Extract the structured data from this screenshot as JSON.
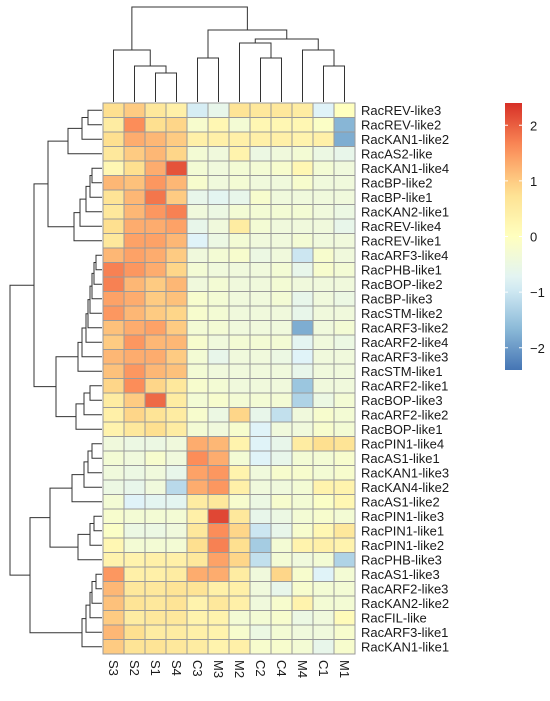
{
  "chart_data": {
    "type": "heatmap",
    "title": "",
    "columns": [
      "S3",
      "S2",
      "S1",
      "S4",
      "C3",
      "M3",
      "M2",
      "C2",
      "C4",
      "M4",
      "C1",
      "M1"
    ],
    "rows": [
      "RacREV-like3",
      "RacREV-like2",
      "RacKAN1-like2",
      "RacAS2-like",
      "RacKAN1-like4",
      "RacBP-like2",
      "RacBP-like1",
      "RacKAN2-like1",
      "RacREV-like4",
      "RacREV-like1",
      "RacARF3-like4",
      "RacPHB-like1",
      "RacBOP-like2",
      "RacBP-like3",
      "RacSTM-like2",
      "RacARF3-like2",
      "RacARF2-like4",
      "RacARF3-like3",
      "RacSTM-like1",
      "RacARF2-like1",
      "RacBOP-like3",
      "RacARF2-like2",
      "RacBOP-like1",
      "RacPIN1-like4",
      "RacAS1-like1",
      "RacKAN1-like3",
      "RacKAN4-like2",
      "RacAS1-like2",
      "RacPIN1-like3",
      "RacPIN1-like1",
      "RacPIN1-like2",
      "RacPHB-like3",
      "RacAS1-like3",
      "RacARF2-like3",
      "RacKAN2-like2",
      "RacFIL-like",
      "RacARF3-like1",
      "RacKAN1-like1"
    ],
    "values": [
      [
        0.8,
        1.0,
        0.6,
        0.4,
        -0.9,
        -0.6,
        0.7,
        0.6,
        0.6,
        0.5,
        -0.8,
        0.0
      ],
      [
        0.5,
        1.6,
        0.8,
        0.9,
        -0.2,
        0.2,
        -0.3,
        0.2,
        0.2,
        0.2,
        -0.1,
        -1.7
      ],
      [
        0.8,
        1.3,
        1.2,
        1.0,
        0.4,
        0.4,
        0.4,
        0.4,
        0.4,
        0.3,
        0.4,
        -1.8
      ],
      [
        0.6,
        1.0,
        1.2,
        0.9,
        -0.3,
        -0.4,
        0.3,
        -0.5,
        -0.4,
        -0.3,
        -0.5,
        -0.6
      ],
      [
        0.2,
        0.8,
        1.3,
        2.1,
        -0.3,
        -0.4,
        -0.3,
        -0.3,
        -0.2,
        0.2,
        -0.3,
        -0.4
      ],
      [
        1.2,
        1.1,
        1.5,
        1.2,
        -0.2,
        -0.4,
        -0.3,
        -0.4,
        -0.4,
        -0.2,
        -0.4,
        -0.4
      ],
      [
        0.7,
        1.2,
        1.8,
        1.0,
        -0.6,
        -0.7,
        -0.6,
        -0.2,
        -0.4,
        -0.4,
        -0.4,
        -0.4
      ],
      [
        0.6,
        1.2,
        1.5,
        1.7,
        -0.4,
        -0.5,
        -0.3,
        -0.3,
        -0.3,
        -0.3,
        -0.4,
        -0.5
      ],
      [
        0.8,
        1.3,
        1.3,
        1.4,
        -0.6,
        -0.4,
        0.5,
        -0.3,
        -0.4,
        -0.4,
        -0.4,
        -0.6
      ],
      [
        0.6,
        1.4,
        1.4,
        1.2,
        -0.8,
        -0.5,
        -0.3,
        -0.4,
        -0.4,
        -0.3,
        -0.4,
        -0.4
      ],
      [
        1.2,
        1.4,
        1.3,
        1.0,
        -0.4,
        -0.3,
        -0.2,
        -0.5,
        -0.4,
        -1.0,
        -0.2,
        -0.4
      ],
      [
        1.7,
        1.5,
        1.3,
        0.9,
        -0.3,
        -0.4,
        -0.4,
        -0.4,
        -0.3,
        -0.6,
        -0.2,
        -0.3
      ],
      [
        1.7,
        1.2,
        1.0,
        1.2,
        -0.4,
        -0.3,
        -0.4,
        -0.4,
        -0.3,
        -0.4,
        -0.4,
        -0.4
      ],
      [
        1.4,
        1.3,
        1.0,
        1.1,
        -0.2,
        -0.3,
        -0.4,
        -0.4,
        -0.3,
        -0.6,
        -0.4,
        -0.5
      ],
      [
        1.5,
        1.2,
        1.0,
        0.9,
        -0.2,
        -0.3,
        -0.4,
        -0.4,
        -0.4,
        -0.6,
        -0.4,
        -0.4
      ],
      [
        1.1,
        1.3,
        1.4,
        1.0,
        -0.3,
        -0.3,
        -0.4,
        -0.4,
        -0.4,
        -1.8,
        -0.4,
        -0.3
      ],
      [
        1.0,
        1.5,
        1.2,
        1.2,
        -0.2,
        -0.4,
        -0.3,
        -0.3,
        -0.3,
        -0.7,
        -0.4,
        -0.5
      ],
      [
        1.2,
        1.3,
        1.3,
        1.0,
        -0.3,
        -0.6,
        -0.4,
        -0.4,
        -0.5,
        -0.8,
        -0.4,
        -0.4
      ],
      [
        1.1,
        1.5,
        1.2,
        1.1,
        -0.3,
        -0.4,
        -0.4,
        -0.4,
        -0.4,
        -0.6,
        -0.4,
        -0.4
      ],
      [
        0.9,
        1.6,
        0.9,
        0.6,
        -0.2,
        -0.3,
        -0.4,
        -0.4,
        -0.4,
        -1.5,
        -0.4,
        -0.4
      ],
      [
        0.5,
        1.0,
        1.9,
        0.5,
        -0.3,
        -0.2,
        -0.3,
        -0.3,
        -0.3,
        -1.3,
        -0.5,
        -0.3
      ],
      [
        0.4,
        0.9,
        0.7,
        0.5,
        -0.2,
        -0.5,
        0.9,
        -0.6,
        -1.1,
        -0.4,
        -0.2,
        -0.3
      ],
      [
        0.3,
        0.6,
        0.8,
        0.5,
        -0.3,
        -0.4,
        -0.2,
        -0.8,
        -0.4,
        -0.4,
        -0.2,
        -0.3
      ],
      [
        -0.4,
        -0.5,
        -0.5,
        -0.4,
        1.3,
        1.2,
        0.3,
        -0.8,
        -0.6,
        0.5,
        0.8,
        0.7
      ],
      [
        -0.3,
        -0.4,
        -0.2,
        -0.4,
        1.6,
        1.3,
        -0.3,
        -0.8,
        -0.6,
        -0.3,
        -0.3,
        -0.2
      ],
      [
        -0.4,
        -0.5,
        -0.4,
        -0.6,
        1.4,
        1.5,
        0.3,
        -0.4,
        -0.2,
        -0.2,
        -0.3,
        -0.2
      ],
      [
        -0.5,
        -0.6,
        -0.4,
        -1.2,
        1.3,
        1.5,
        0.4,
        -0.4,
        -0.4,
        -0.3,
        0.3,
        0.3
      ],
      [
        -0.3,
        -0.8,
        -0.7,
        -0.7,
        0.5,
        0.6,
        -0.2,
        -0.5,
        -0.2,
        -0.3,
        -0.1,
        0.2
      ],
      [
        -0.2,
        -0.3,
        -0.3,
        -0.3,
        0.4,
        2.2,
        0.6,
        -0.6,
        -0.5,
        -0.3,
        -0.2,
        -0.3
      ],
      [
        -0.1,
        -0.5,
        -0.5,
        -0.4,
        0.6,
        1.6,
        0.9,
        -1.0,
        -0.6,
        -0.2,
        0.2,
        0.6
      ],
      [
        0.2,
        -0.3,
        -0.3,
        -0.3,
        0.8,
        1.7,
        0.8,
        -1.4,
        -0.3,
        0.3,
        0.4,
        0.3
      ],
      [
        0.3,
        0.3,
        0.4,
        0.4,
        0.6,
        1.4,
        0.9,
        -1.1,
        -0.3,
        -0.4,
        -0.3,
        -1.3
      ],
      [
        1.5,
        0.4,
        0.4,
        0.5,
        1.3,
        1.3,
        0.5,
        -0.4,
        0.9,
        -0.2,
        -0.8,
        -0.3
      ],
      [
        1.2,
        0.6,
        0.6,
        0.7,
        0.7,
        0.4,
        0.4,
        -0.4,
        -0.6,
        -0.2,
        -0.3,
        -0.3
      ],
      [
        1.1,
        0.7,
        0.6,
        0.7,
        0.3,
        0.6,
        0.4,
        -0.4,
        -0.2,
        0.3,
        -0.3,
        -0.3
      ],
      [
        1.0,
        0.5,
        0.6,
        0.6,
        0.3,
        0.3,
        -0.3,
        -0.3,
        -0.2,
        -0.5,
        -0.4,
        0.1
      ],
      [
        1.2,
        0.8,
        0.5,
        0.5,
        0.4,
        0.3,
        -0.2,
        -0.5,
        -0.3,
        -0.4,
        -0.4,
        -0.2
      ],
      [
        1.0,
        0.7,
        0.7,
        0.6,
        0.5,
        0.3,
        0.4,
        -0.2,
        -0.2,
        -0.3,
        -0.6,
        -0.2
      ]
    ],
    "color_scale": {
      "min": -2.4,
      "max": 2.4,
      "stops": [
        "#4575b4",
        "#91bfdb",
        "#e0f3f8",
        "#ffffbf",
        "#fee090",
        "#fc8d59",
        "#d73027"
      ],
      "ticks": [
        2,
        1,
        0,
        -1,
        -2
      ]
    },
    "legend_position": "right",
    "column_dendrogram": true,
    "row_dendrogram": true,
    "grid": true
  }
}
